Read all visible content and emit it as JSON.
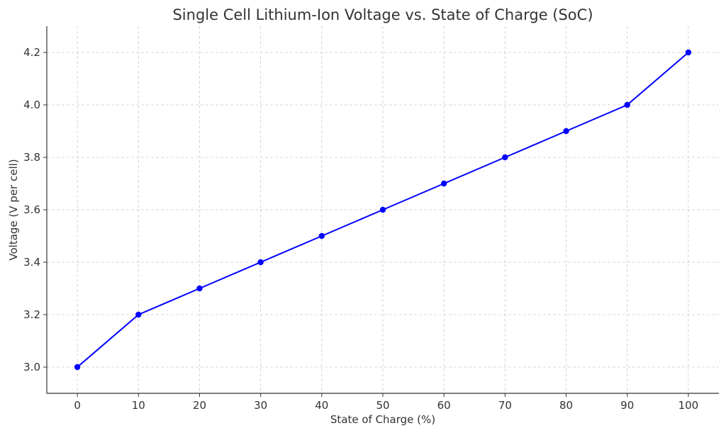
{
  "chart_data": {
    "type": "line",
    "title": "Single Cell Lithium-Ion Voltage vs. State of Charge (SoC)",
    "xlabel": "State of Charge (%)",
    "ylabel": "Voltage (V per cell)",
    "x": [
      0,
      10,
      20,
      30,
      40,
      50,
      60,
      70,
      80,
      90,
      100
    ],
    "y": [
      3.0,
      3.2,
      3.3,
      3.4,
      3.5,
      3.6,
      3.7,
      3.8,
      3.9,
      4.0,
      4.2
    ],
    "xlim": [
      -5,
      105
    ],
    "ylim": [
      2.9,
      4.3
    ],
    "xticks": [
      0,
      10,
      20,
      30,
      40,
      50,
      60,
      70,
      80,
      90,
      100
    ],
    "yticks": [
      3.0,
      3.2,
      3.4,
      3.6,
      3.8,
      4.0,
      4.2
    ],
    "ytick_labels": [
      "3.0",
      "3.2",
      "3.4",
      "3.6",
      "3.8",
      "4.0",
      "4.2"
    ],
    "grid": true,
    "line_color": "#0000ff",
    "marker": "circle"
  }
}
